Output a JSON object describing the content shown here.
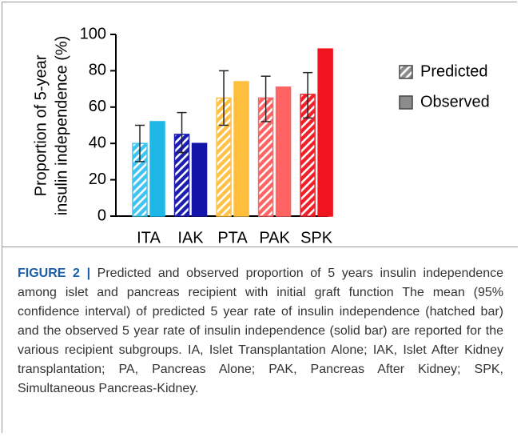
{
  "chart_data": {
    "type": "bar",
    "categories": [
      "ITA",
      "IAK",
      "PTA",
      "PAK",
      "SPK"
    ],
    "y_label": [
      "Proportion of 5-year",
      "insulin independence (%)"
    ],
    "series": [
      {
        "name": "Predicted",
        "color": "#8c8c8c",
        "hatched": true,
        "colors": [
          "#3fc3f0",
          "#1c1cb0",
          "#ffc247",
          "#ff6464",
          "#f0202a"
        ],
        "values": [
          40,
          45,
          65,
          65,
          67
        ],
        "lower": [
          30,
          35,
          50,
          52,
          54
        ],
        "upper": [
          50,
          57,
          80,
          77,
          79
        ]
      },
      {
        "name": "Observed",
        "color": "#8c8c8c",
        "hatched": false,
        "colors": [
          "#1fb7e8",
          "#1414a8",
          "#ffbf3c",
          "#ff6464",
          "#f0141e"
        ],
        "values": [
          52,
          40,
          74,
          71,
          92
        ]
      }
    ],
    "ylim": [
      0,
      100
    ],
    "yticks": [
      0,
      20,
      40,
      60,
      80,
      100
    ],
    "grid": false,
    "legend": "right",
    "caption_label": "FIGURE 2 |",
    "caption": "Predicted and observed proportion of 5 years insulin independence among islet and pancreas recipient with initial graft function The mean (95% confidence interval) of predicted 5 year rate of insulin independence (hatched bar) and the observed 5 year rate of insulin independence (solid bar) are reported for the various recipient subgroups. IA, Islet Transplantation Alone; IAK, Islet After Kidney transplantation; PA, Pancreas Alone; PAK, Pancreas After Kidney; SPK, Simultaneous Pancreas-Kidney."
  }
}
